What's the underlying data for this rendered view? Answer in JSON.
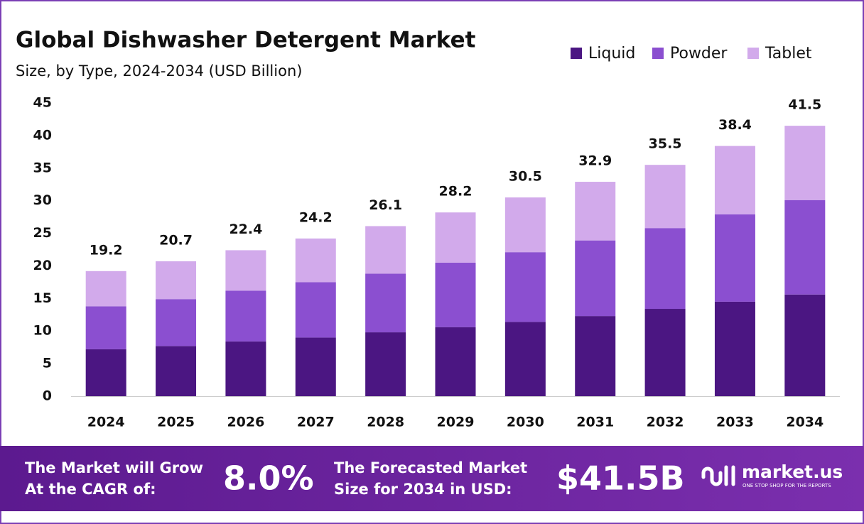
{
  "chart_data": {
    "type": "stacked-bar",
    "title": "Global Dishwasher Detergent Market",
    "subtitle": "Size, by Type, 2024-2034 (USD Billion)",
    "categories": [
      "2024",
      "2025",
      "2026",
      "2027",
      "2028",
      "2029",
      "2030",
      "2031",
      "2032",
      "2033",
      "2034"
    ],
    "series": [
      {
        "name": "Liquid",
        "color": "#4b1682",
        "values": [
          7.2,
          7.7,
          8.4,
          9.0,
          9.8,
          10.6,
          11.4,
          12.3,
          13.4,
          14.5,
          15.6
        ]
      },
      {
        "name": "Powder",
        "color": "#8b4fd0",
        "values": [
          6.6,
          7.2,
          7.8,
          8.5,
          9.0,
          9.9,
          10.7,
          11.6,
          12.4,
          13.4,
          14.5
        ]
      },
      {
        "name": "Tablet",
        "color": "#d2aaeb",
        "values": [
          5.4,
          5.8,
          6.2,
          6.7,
          7.3,
          7.7,
          8.4,
          9.0,
          9.7,
          10.5,
          11.4
        ]
      }
    ],
    "totals": [
      19.2,
      20.7,
      22.4,
      24.2,
      26.1,
      28.2,
      30.5,
      32.9,
      35.5,
      38.4,
      41.5
    ],
    "ylim": [
      0,
      45
    ],
    "yticks": [
      0,
      5,
      10,
      15,
      20,
      25,
      30,
      35,
      40,
      45
    ],
    "grid": false
  },
  "footer": {
    "cagr_text": [
      "The Market will Grow",
      "At the CAGR of:"
    ],
    "cagr_value": "8.0%",
    "forecast_text": [
      "The Forecasted Market",
      "Size for 2034 in USD:"
    ],
    "forecast_value": "$41.5B",
    "brand": "market.us",
    "tagline": "ONE STOP SHOP FOR THE REPORTS"
  }
}
